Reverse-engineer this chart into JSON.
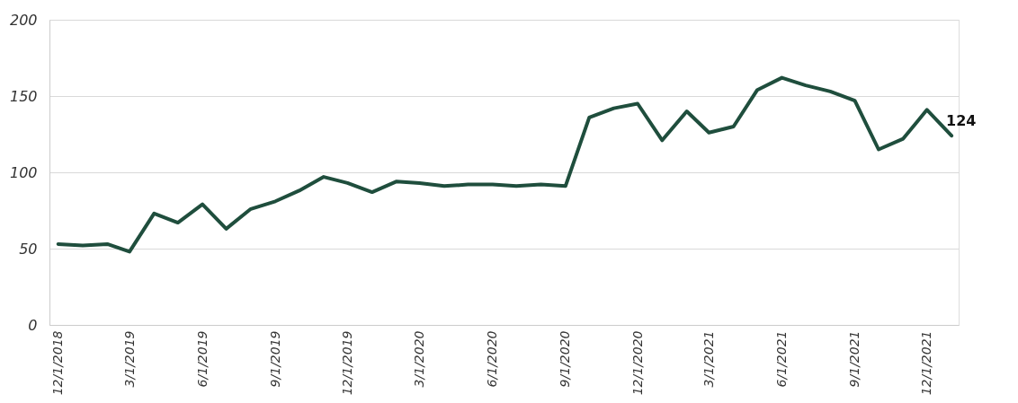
{
  "chart_data": {
    "type": "line",
    "x": [
      "2018-12-01",
      "2019-01-01",
      "2019-02-01",
      "2019-03-01",
      "2019-04-01",
      "2019-05-01",
      "2019-06-01",
      "2019-07-01",
      "2019-08-01",
      "2019-09-01",
      "2019-10-01",
      "2019-11-01",
      "2019-12-01",
      "2020-01-01",
      "2020-02-01",
      "2020-03-01",
      "2020-04-01",
      "2020-05-01",
      "2020-06-01",
      "2020-07-01",
      "2020-08-01",
      "2020-09-01",
      "2020-10-01",
      "2020-11-01",
      "2020-12-01",
      "2021-01-01",
      "2021-02-01",
      "2021-03-01",
      "2021-04-01",
      "2021-05-01",
      "2021-06-01",
      "2021-07-01",
      "2021-08-01",
      "2021-09-01",
      "2021-10-01",
      "2021-11-01",
      "2021-12-01",
      "2022-01-01"
    ],
    "series": [
      {
        "color": "#1f4e3d",
        "values": [
          53,
          52,
          53,
          48,
          73,
          67,
          79,
          63,
          76,
          81,
          88,
          97,
          93,
          87,
          94,
          93,
          91,
          92,
          92,
          91,
          92,
          91,
          136,
          142,
          145,
          121,
          140,
          126,
          130,
          154,
          162,
          157,
          153,
          147,
          115,
          122,
          141,
          124
        ]
      }
    ],
    "xlim": [
      "2018-11-20",
      "2022-01-10"
    ],
    "xticks": [
      {
        "value": "2018-12-01",
        "label": "12/1/2018"
      },
      {
        "value": "2019-03-01",
        "label": "3/1/2019"
      },
      {
        "value": "2019-06-01",
        "label": "6/1/2019"
      },
      {
        "value": "2019-09-01",
        "label": "9/1/2019"
      },
      {
        "value": "2019-12-01",
        "label": "12/1/2019"
      },
      {
        "value": "2020-03-01",
        "label": "3/1/2020"
      },
      {
        "value": "2020-06-01",
        "label": "6/1/2020"
      },
      {
        "value": "2020-09-01",
        "label": "9/1/2020"
      },
      {
        "value": "2020-12-01",
        "label": "12/1/2020"
      },
      {
        "value": "2021-03-01",
        "label": "3/1/2021"
      },
      {
        "value": "2021-06-01",
        "label": "6/1/2021"
      },
      {
        "value": "2021-09-01",
        "label": "9/1/2021"
      },
      {
        "value": "2021-12-01",
        "label": "12/1/2021"
      }
    ],
    "ylim": [
      0,
      200
    ],
    "yticks": [
      0,
      50,
      100,
      150,
      200
    ],
    "grid": "y",
    "marker": "none",
    "line_style": "solid",
    "annotations": [
      {
        "text": "124",
        "x": "2022-01-01",
        "y": 124
      }
    ]
  }
}
